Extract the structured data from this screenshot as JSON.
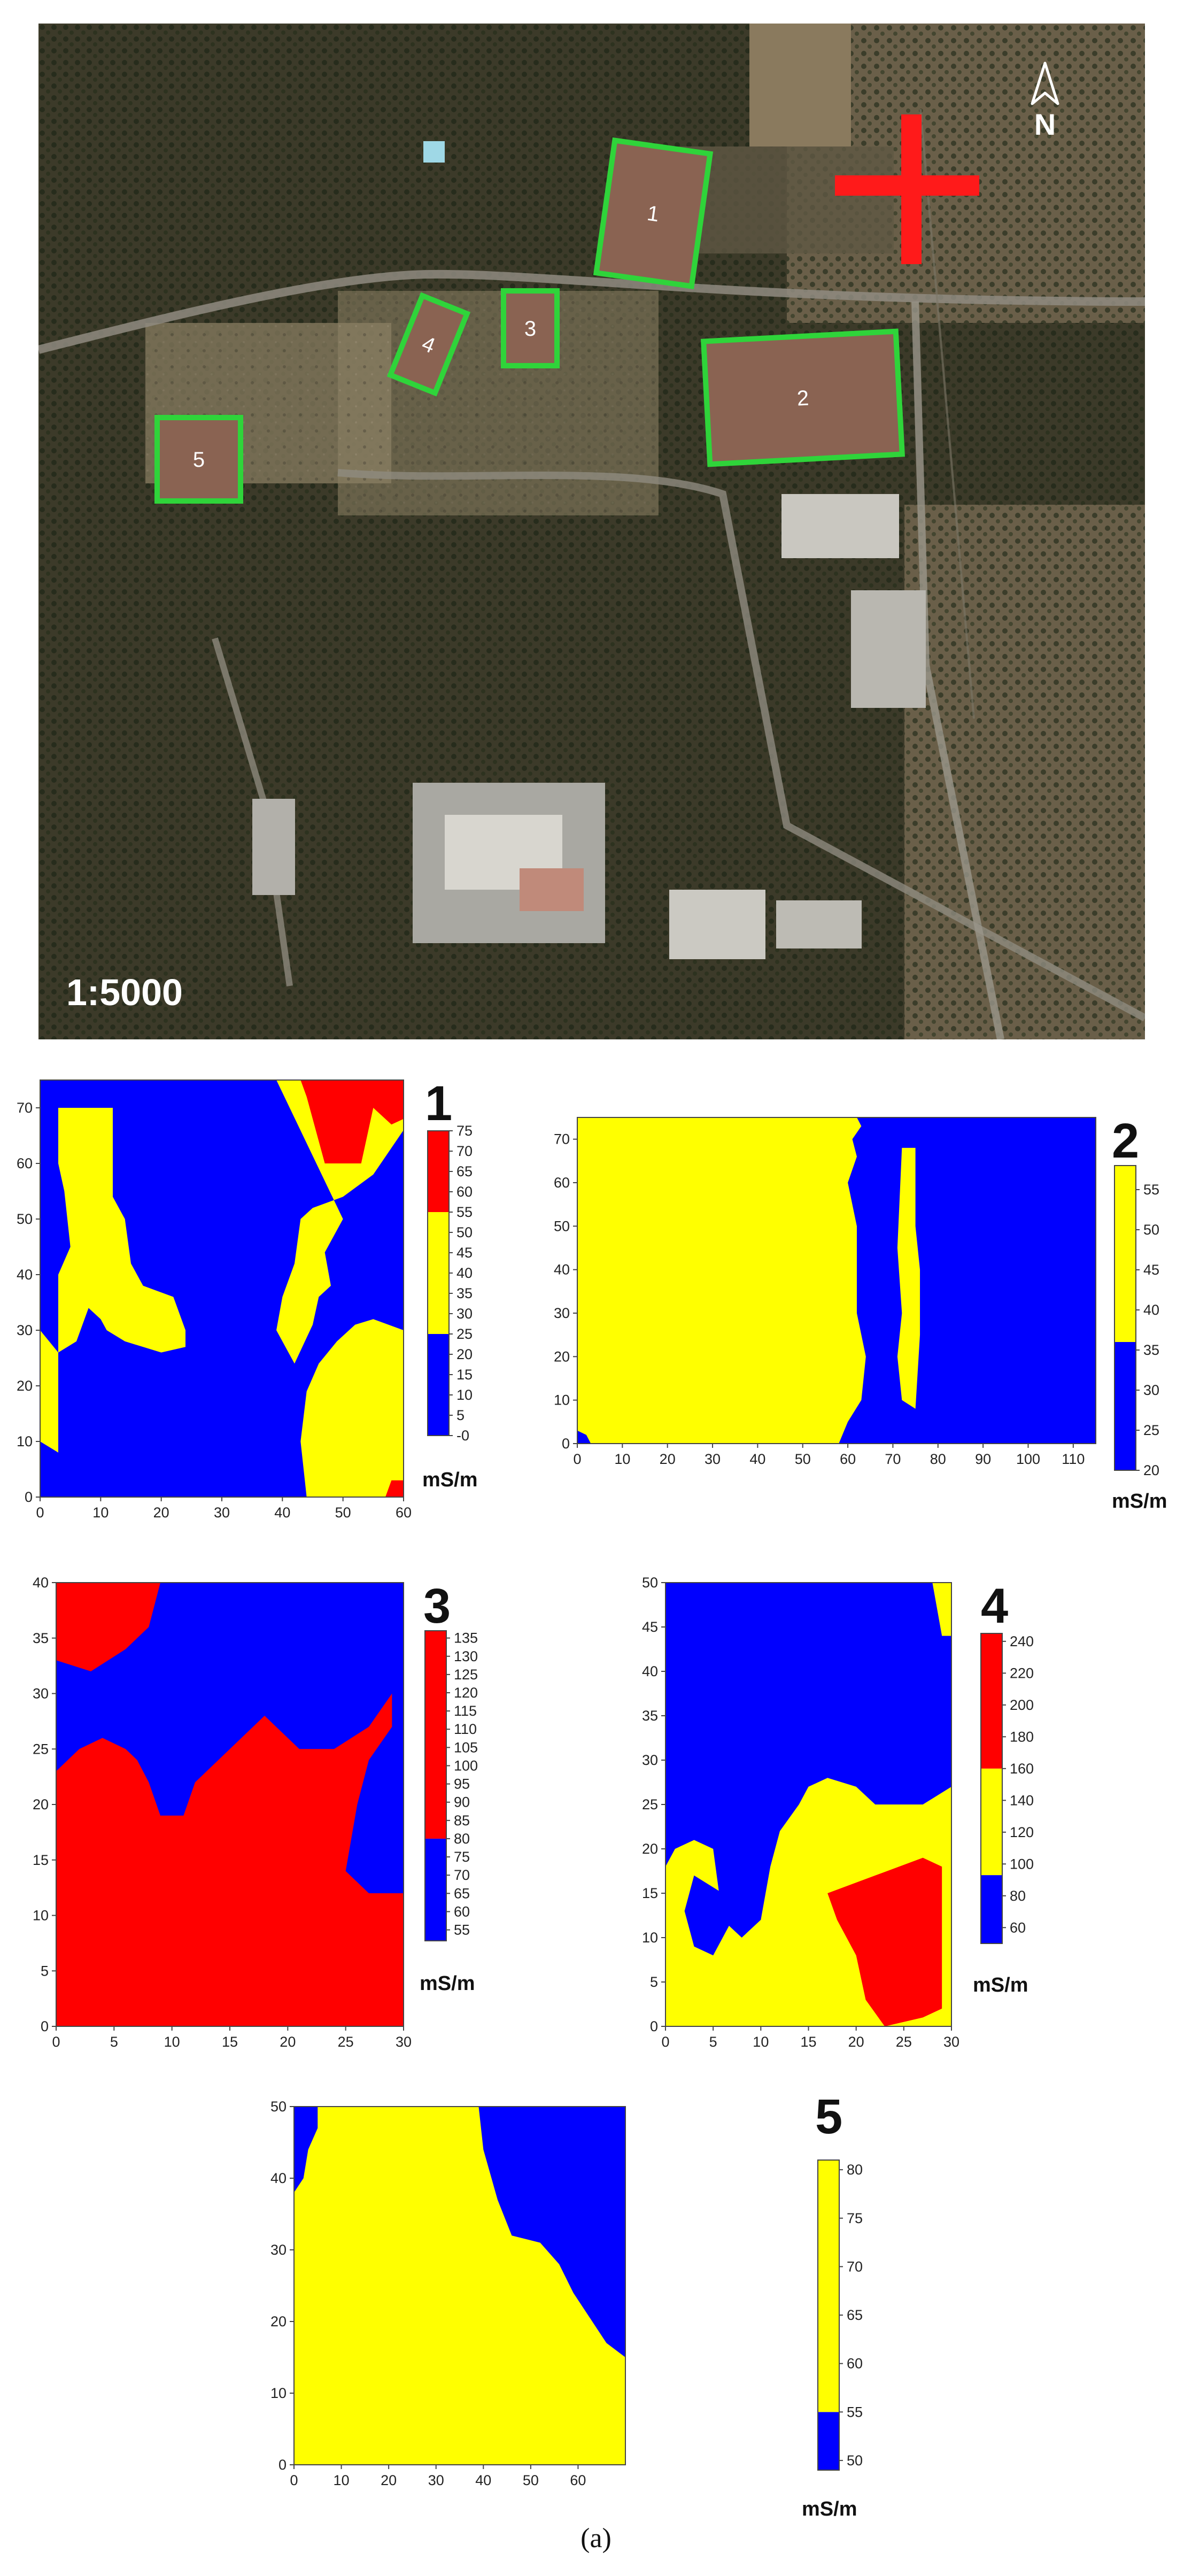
{
  "map": {
    "scale_label": "1:5000",
    "north_label": "N",
    "plots": [
      {
        "id": "1",
        "label": "1"
      },
      {
        "id": "2",
        "label": "2"
      },
      {
        "id": "3",
        "label": "3"
      },
      {
        "id": "4",
        "label": "4"
      },
      {
        "id": "5",
        "label": "5"
      }
    ],
    "colors": {
      "plot_fill": "#8a6352",
      "plot_border": "#2fd43a",
      "marker": "#ff1a1a"
    }
  },
  "caption": "(a)",
  "chart_data": [
    {
      "type": "heatmap",
      "title": "1",
      "unit": "mS/m",
      "xlim": [
        0,
        60
      ],
      "ylim": [
        0,
        75
      ],
      "xticks": [
        "0",
        "10",
        "20",
        "30",
        "40",
        "50",
        "60"
      ],
      "yticks": [
        "0",
        "10",
        "20",
        "30",
        "40",
        "50",
        "60",
        "70"
      ],
      "colorbar": {
        "ticks": [
          "-0",
          "5",
          "10",
          "15",
          "20",
          "25",
          "30",
          "35",
          "40",
          "45",
          "50",
          "55",
          "60",
          "65",
          "70",
          "75"
        ],
        "range": [
          0,
          75
        ],
        "bands": [
          {
            "from": 0,
            "to": 25,
            "color": "#0000ff"
          },
          {
            "from": 25,
            "to": 55,
            "color": "#ffff00"
          },
          {
            "from": 55,
            "to": 75,
            "color": "#ff0000"
          }
        ]
      },
      "background": "#0000ff",
      "regions": [
        {
          "class": "yellow",
          "color": "#ffff00",
          "points": [
            [
              3,
              70
            ],
            [
              12,
              70
            ],
            [
              12,
              54
            ],
            [
              14,
              50
            ],
            [
              15,
              42
            ],
            [
              17,
              38
            ],
            [
              22,
              36
            ],
            [
              24,
              30
            ],
            [
              24,
              27
            ],
            [
              20,
              26
            ],
            [
              14,
              28
            ],
            [
              11,
              30
            ],
            [
              10,
              32
            ],
            [
              8,
              34
            ],
            [
              6,
              28
            ],
            [
              3,
              26
            ],
            [
              0,
              30
            ],
            [
              0,
              10
            ],
            [
              3,
              8
            ],
            [
              3,
              40
            ],
            [
              5,
              45
            ],
            [
              4,
              55
            ],
            [
              3,
              60
            ]
          ]
        },
        {
          "class": "yellow",
          "color": "#ffff00",
          "points": [
            [
              39,
              75
            ],
            [
              60,
              75
            ],
            [
              60,
              66
            ],
            [
              55,
              58
            ],
            [
              50,
              54
            ],
            [
              45,
              52
            ],
            [
              43,
              50
            ],
            [
              42,
              42
            ],
            [
              40,
              36
            ],
            [
              39,
              30
            ],
            [
              42,
              24
            ],
            [
              45,
              31
            ],
            [
              46,
              36
            ],
            [
              48,
              38
            ],
            [
              47,
              44
            ],
            [
              50,
              50
            ]
          ]
        },
        {
          "class": "red",
          "color": "#ff0000",
          "points": [
            [
              43,
              75
            ],
            [
              60,
              75
            ],
            [
              60,
              68
            ],
            [
              58,
              67
            ],
            [
              55,
              70
            ],
            [
              53,
              60
            ],
            [
              47,
              60
            ],
            [
              45,
              68
            ],
            [
              44,
              72
            ]
          ]
        },
        {
          "class": "yellow",
          "color": "#ffff00",
          "points": [
            [
              44,
              0
            ],
            [
              60,
              0
            ],
            [
              60,
              30
            ],
            [
              55,
              32
            ],
            [
              52,
              31
            ],
            [
              49,
              28
            ],
            [
              46,
              24
            ],
            [
              44,
              19
            ],
            [
              43,
              10
            ]
          ]
        },
        {
          "class": "red",
          "color": "#ff0000",
          "points": [
            [
              57,
              0
            ],
            [
              60,
              0
            ],
            [
              60,
              3
            ],
            [
              58,
              3
            ]
          ]
        }
      ]
    },
    {
      "type": "heatmap",
      "title": "2",
      "unit": "mS/m",
      "xlim": [
        0,
        115
      ],
      "ylim": [
        0,
        75
      ],
      "xticks": [
        "0",
        "10",
        "20",
        "30",
        "40",
        "50",
        "60",
        "70",
        "80",
        "90",
        "100",
        "110"
      ],
      "yticks": [
        "0",
        "10",
        "20",
        "30",
        "40",
        "50",
        "60",
        "70"
      ],
      "colorbar": {
        "ticks": [
          "20",
          "25",
          "30",
          "35",
          "40",
          "45",
          "50",
          "55"
        ],
        "range": [
          20,
          58
        ],
        "bands": [
          {
            "from": 20,
            "to": 36,
            "color": "#0000ff"
          },
          {
            "from": 36,
            "to": 58,
            "color": "#ffff00"
          }
        ]
      },
      "background": "#ffff00",
      "regions": [
        {
          "class": "blue",
          "color": "#0000ff",
          "points": [
            [
              62,
              75
            ],
            [
              115,
              75
            ],
            [
              115,
              0
            ],
            [
              58,
              0
            ],
            [
              60,
              5
            ],
            [
              63,
              10
            ],
            [
              64,
              20
            ],
            [
              62,
              30
            ],
            [
              62,
              40
            ],
            [
              62,
              50
            ],
            [
              60,
              60
            ],
            [
              62,
              66
            ],
            [
              61,
              70
            ],
            [
              63,
              73
            ]
          ]
        },
        {
          "class": "yellow",
          "color": "#ffff00",
          "points": [
            [
              72,
              68
            ],
            [
              75,
              68
            ],
            [
              75,
              50
            ],
            [
              76,
              40
            ],
            [
              76,
              25
            ],
            [
              75,
              8
            ],
            [
              72,
              10
            ],
            [
              71,
              20
            ],
            [
              72,
              30
            ],
            [
              71,
              45
            ]
          ]
        },
        {
          "class": "blue",
          "color": "#0000ff",
          "points": [
            [
              0,
              0
            ],
            [
              3,
              0
            ],
            [
              2,
              2
            ],
            [
              0,
              3
            ]
          ]
        }
      ]
    },
    {
      "type": "heatmap",
      "title": "3",
      "unit": "mS/m",
      "xlim": [
        0,
        30
      ],
      "ylim": [
        0,
        40
      ],
      "xticks": [
        "0",
        "5",
        "10",
        "15",
        "20",
        "25",
        "30"
      ],
      "yticks": [
        "0",
        "5",
        "10",
        "15",
        "20",
        "25",
        "30",
        "35",
        "40"
      ],
      "colorbar": {
        "ticks": [
          "55",
          "60",
          "65",
          "70",
          "75",
          "80",
          "85",
          "90",
          "95",
          "100",
          "105",
          "110",
          "115",
          "120",
          "125",
          "130",
          "135"
        ],
        "range": [
          52,
          137
        ],
        "bands": [
          {
            "from": 52,
            "to": 80,
            "color": "#0000ff"
          },
          {
            "from": 80,
            "to": 137,
            "color": "#ff0000"
          }
        ]
      },
      "background": "#0000ff",
      "regions": [
        {
          "class": "red",
          "color": "#ff0000",
          "points": [
            [
              0,
              0
            ],
            [
              30,
              0
            ],
            [
              30,
              12
            ],
            [
              27,
              12
            ],
            [
              25,
              14
            ],
            [
              26,
              20
            ],
            [
              27,
              24
            ],
            [
              29,
              27
            ],
            [
              29,
              30
            ],
            [
              27,
              27
            ],
            [
              24,
              25
            ],
            [
              21,
              25
            ],
            [
              18,
              28
            ],
            [
              16,
              26
            ],
            [
              14,
              24
            ],
            [
              12,
              22
            ],
            [
              11,
              19
            ],
            [
              9,
              19
            ],
            [
              8,
              22
            ],
            [
              7,
              24
            ],
            [
              6,
              25
            ],
            [
              4,
              26
            ],
            [
              2,
              25
            ],
            [
              0,
              23
            ]
          ]
        },
        {
          "class": "red",
          "color": "#ff0000",
          "points": [
            [
              0,
              40
            ],
            [
              9,
              40
            ],
            [
              8,
              36
            ],
            [
              6,
              34
            ],
            [
              3,
              32
            ],
            [
              0,
              33
            ]
          ]
        }
      ]
    },
    {
      "type": "heatmap",
      "title": "4",
      "unit": "mS/m",
      "xlim": [
        0,
        30
      ],
      "ylim": [
        0,
        50
      ],
      "xticks": [
        "0",
        "5",
        "10",
        "15",
        "20",
        "25",
        "30"
      ],
      "yticks": [
        "0",
        "5",
        "10",
        "15",
        "20",
        "25",
        "30",
        "35",
        "40",
        "45",
        "50"
      ],
      "colorbar": {
        "ticks": [
          "60",
          "80",
          "100",
          "120",
          "140",
          "160",
          "180",
          "200",
          "220",
          "240"
        ],
        "range": [
          50,
          245
        ],
        "bands": [
          {
            "from": 50,
            "to": 93,
            "color": "#0000ff"
          },
          {
            "from": 93,
            "to": 160,
            "color": "#ffff00"
          },
          {
            "from": 160,
            "to": 245,
            "color": "#ff0000"
          }
        ]
      },
      "background": "#0000ff",
      "regions": [
        {
          "class": "yellow",
          "color": "#ffff00",
          "points": [
            [
              0,
              0
            ],
            [
              30,
              0
            ],
            [
              30,
              27
            ],
            [
              27,
              25
            ],
            [
              22,
              25
            ],
            [
              20,
              27
            ],
            [
              17,
              28
            ],
            [
              15,
              27
            ],
            [
              14,
              25
            ],
            [
              12,
              22
            ],
            [
              11,
              18
            ],
            [
              10,
              12
            ],
            [
              8,
              10
            ],
            [
              6,
              12
            ],
            [
              5,
              20
            ],
            [
              3,
              21
            ],
            [
              1,
              20
            ],
            [
              0,
              18
            ]
          ]
        },
        {
          "class": "blue",
          "color": "#0000ff",
          "points": [
            [
              3,
              17
            ],
            [
              6,
              15
            ],
            [
              7,
              12
            ],
            [
              5,
              8
            ],
            [
              3,
              9
            ],
            [
              2,
              13
            ]
          ]
        },
        {
          "class": "red",
          "color": "#ff0000",
          "points": [
            [
              17,
              15
            ],
            [
              22,
              17
            ],
            [
              27,
              19
            ],
            [
              29,
              18
            ],
            [
              29,
              2
            ],
            [
              27,
              1
            ],
            [
              23,
              0
            ],
            [
              21,
              3
            ],
            [
              20,
              8
            ],
            [
              18,
              12
            ]
          ]
        },
        {
          "class": "yellow",
          "color": "#ffff00",
          "points": [
            [
              28,
              50
            ],
            [
              30,
              50
            ],
            [
              30,
              44
            ],
            [
              29,
              44
            ]
          ]
        }
      ]
    },
    {
      "type": "heatmap",
      "title": "5",
      "unit": "mS/m",
      "xlim": [
        0,
        70
      ],
      "ylim": [
        0,
        50
      ],
      "xticks": [
        "0",
        "10",
        "20",
        "30",
        "40",
        "50",
        "60"
      ],
      "yticks": [
        "0",
        "10",
        "20",
        "30",
        "40",
        "50"
      ],
      "colorbar": {
        "ticks": [
          "50",
          "55",
          "60",
          "65",
          "70",
          "75",
          "80"
        ],
        "range": [
          49,
          81
        ],
        "bands": [
          {
            "from": 49,
            "to": 55,
            "color": "#0000ff"
          },
          {
            "from": 55,
            "to": 81,
            "color": "#ffff00"
          }
        ]
      },
      "background": "#ffff00",
      "regions": [
        {
          "class": "blue",
          "color": "#0000ff",
          "points": [
            [
              39,
              50
            ],
            [
              70,
              50
            ],
            [
              70,
              15
            ],
            [
              66,
              17
            ],
            [
              63,
              20
            ],
            [
              59,
              24
            ],
            [
              56,
              28
            ],
            [
              52,
              31
            ],
            [
              46,
              32
            ],
            [
              43,
              37
            ],
            [
              40,
              44
            ]
          ]
        },
        {
          "class": "blue",
          "color": "#0000ff",
          "points": [
            [
              0,
              50
            ],
            [
              5,
              50
            ],
            [
              5,
              47
            ],
            [
              3,
              44
            ],
            [
              2,
              40
            ],
            [
              0,
              38
            ]
          ]
        }
      ]
    }
  ]
}
